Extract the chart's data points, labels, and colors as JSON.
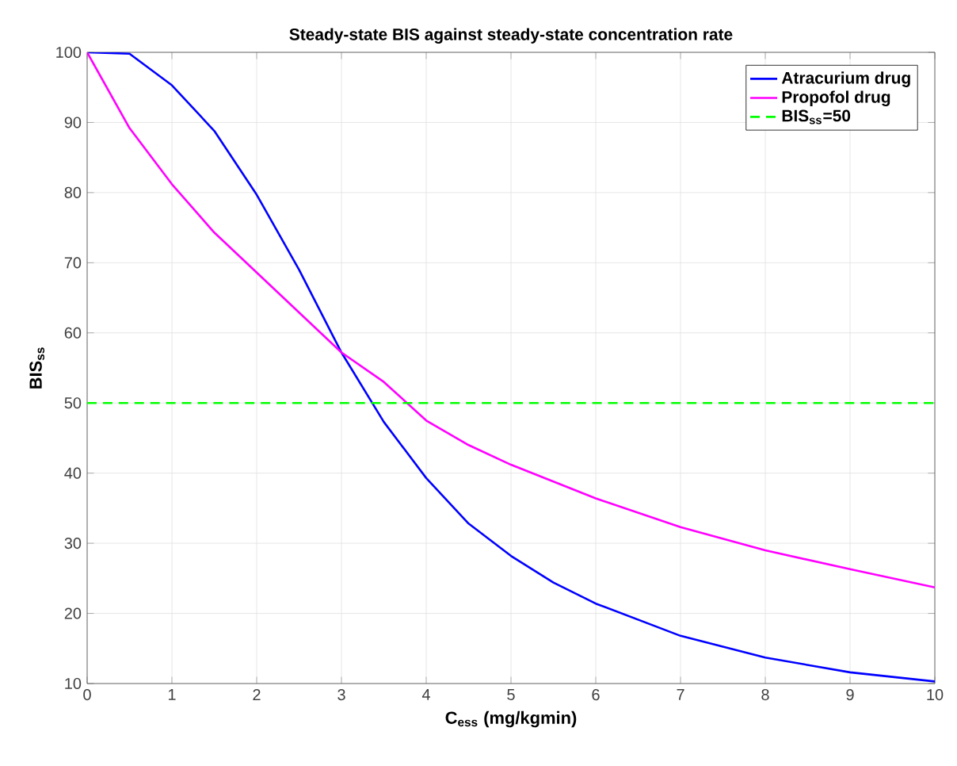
{
  "chart_data": {
    "type": "line",
    "title": "Steady-state BIS against steady-state concentration rate",
    "xlabel": "C$_{ess}$ (mg/kgmin)",
    "ylabel": "BIS$_{ss}$",
    "xlim": [
      0,
      10
    ],
    "ylim": [
      10,
      100
    ],
    "xticks": [
      0,
      1,
      2,
      3,
      4,
      5,
      6,
      7,
      8,
      9,
      10
    ],
    "yticks": [
      10,
      20,
      30,
      40,
      50,
      60,
      70,
      80,
      90,
      100
    ],
    "grid": true,
    "legend": "top right",
    "marker": "none",
    "line_style": "solid",
    "series": [
      {
        "name": "Atracurium drug",
        "color": "#0000ff",
        "x": [
          0,
          0.5,
          1,
          1.5,
          2,
          2.5,
          3,
          3.5,
          4,
          4.5,
          5,
          5.5,
          6,
          7,
          8,
          9,
          10
        ],
        "values": [
          100,
          99.8,
          95.3,
          88.8,
          79.7,
          69,
          57.2,
          47.3,
          39.3,
          32.8,
          28.2,
          24.4,
          21.4,
          16.8,
          13.7,
          11.6,
          10.3
        ]
      },
      {
        "name": "Propofol drug",
        "color": "#ff00ff",
        "x": [
          0,
          0.5,
          1,
          1.5,
          2,
          2.5,
          3,
          3.5,
          4,
          4.5,
          5,
          6,
          7,
          8,
          9,
          10
        ],
        "values": [
          100,
          89.2,
          81.2,
          74.3,
          68.6,
          62.9,
          57.2,
          53,
          47.5,
          44,
          41.2,
          36.4,
          32.3,
          29,
          26.3,
          23.7
        ]
      }
    ],
    "ref_lines": [
      {
        "axis": "y",
        "value": 50,
        "label": "BIS$_{ss}$=50",
        "color": "#00ff00",
        "line_style": "dashed"
      }
    ]
  }
}
